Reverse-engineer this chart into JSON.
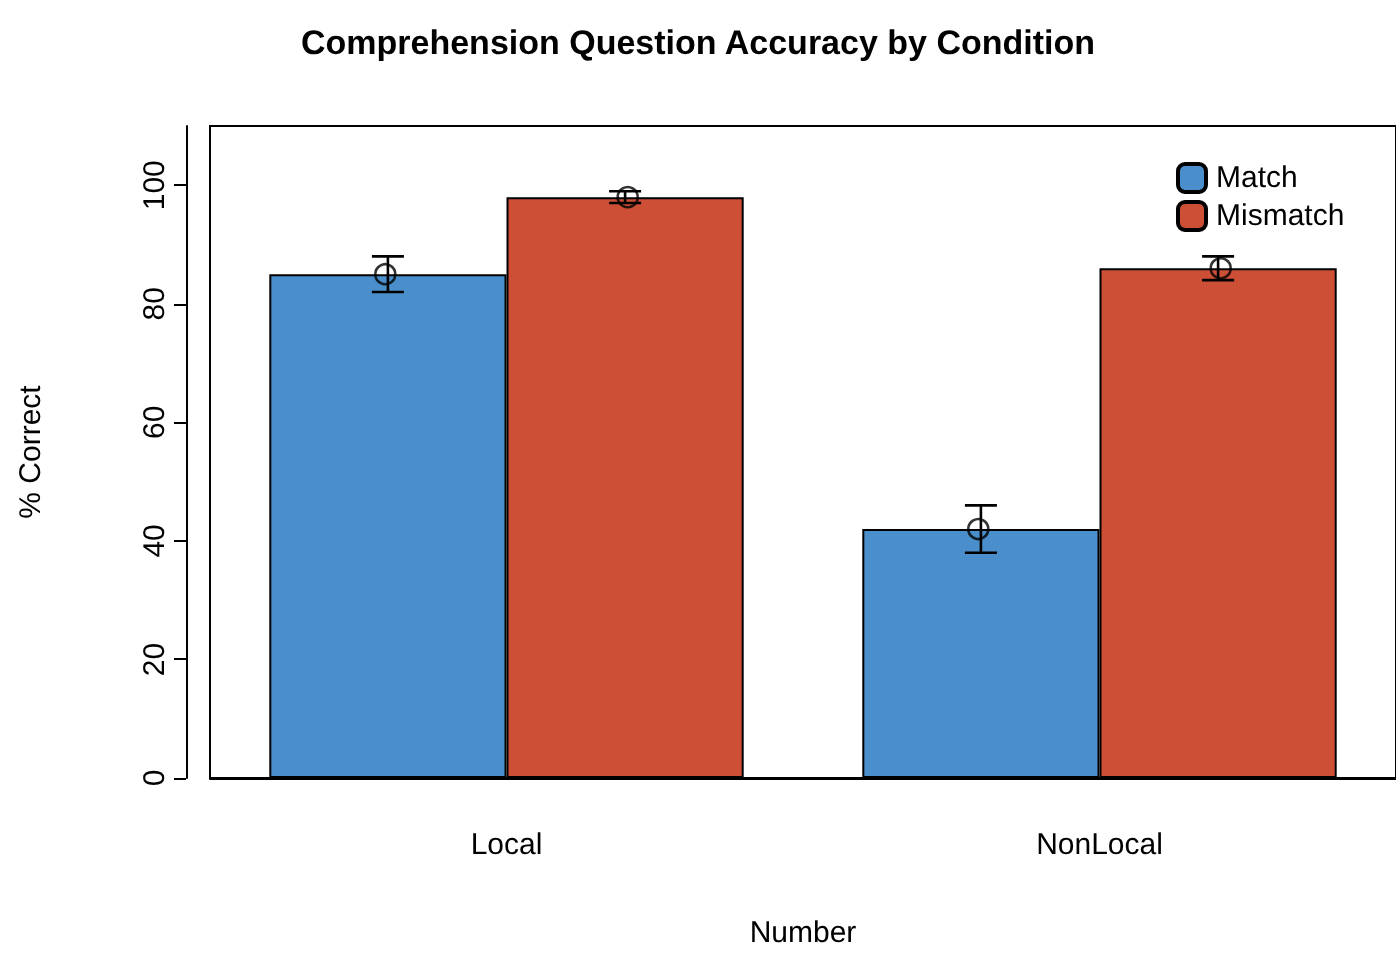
{
  "chart_data": {
    "type": "bar",
    "title": "Comprehension Question Accuracy by Condition",
    "xlabel": "Number",
    "ylabel": "% Correct",
    "categories": [
      "Local",
      "NonLocal"
    ],
    "series": [
      {
        "name": "Match",
        "color": "#4a8fcb",
        "values": [
          85,
          42
        ],
        "errors": [
          3,
          4
        ]
      },
      {
        "name": "Mismatch",
        "color": "#cd4f35",
        "values": [
          98,
          86
        ],
        "errors": [
          1,
          2
        ]
      },
      {
        "type": "scatter",
        "color": "#000000",
        "x": [
          "Local",
          "NonLocal"
        ],
        "values": [
          85,
          42
        ]
      },
      {
        "type": "scatter",
        "color": "#000000",
        "x": [
          "Local",
          "NonLocal"
        ],
        "values": [
          98,
          86
        ]
      }
    ],
    "ylim": [
      0,
      110
    ],
    "yticks": [
      0,
      20,
      40,
      60,
      80,
      100
    ],
    "grid": false,
    "legend": "top right",
    "marker": "circle"
  }
}
